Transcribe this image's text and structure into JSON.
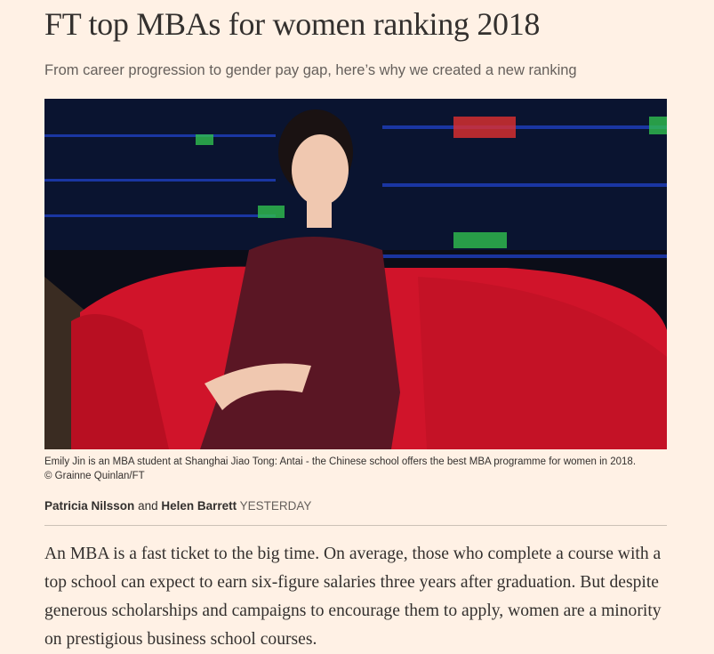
{
  "header": {
    "title": "FT top MBAs for women ranking 2018",
    "standfirst": "From career progression to gender pay gap, here’s why we created a new ranking"
  },
  "image": {
    "caption": "Emily Jin is an MBA student at Shanghai Jiao Tong: Antai - the Chinese school offers the best MBA programme for women in 2018.",
    "credit": "© Grainne Quinlan/FT"
  },
  "byline": {
    "author1": "Patricia Nilsson",
    "conjunction": "and",
    "author2": "Helen Barrett",
    "date": "YESTERDAY"
  },
  "body": {
    "paragraph": "An MBA is a fast ticket to the big time. On average, those who complete a course with a top school can expect to earn six-figure salaries three years after graduation. But despite generous scholarships and campaigns to encourage them to apply, women are a minority on prestigious business school courses."
  }
}
